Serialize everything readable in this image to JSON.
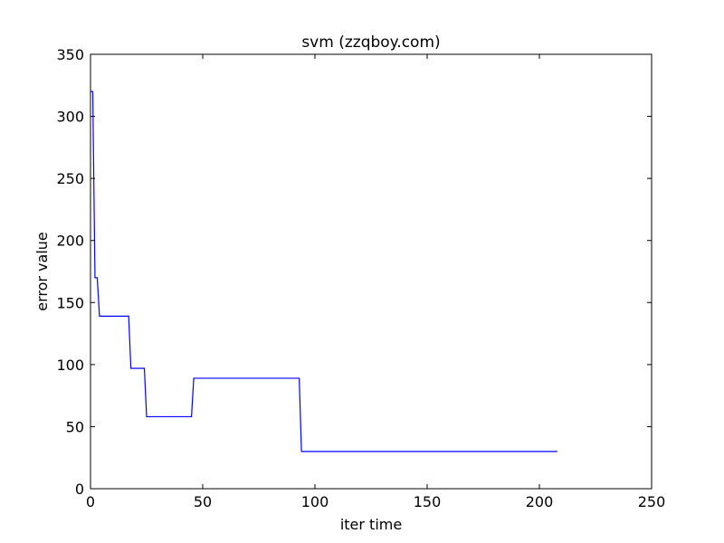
{
  "chart_data": {
    "type": "line",
    "title": "svm (zzqboy.com)",
    "xlabel": "iter time",
    "ylabel": "error value",
    "xlim": [
      0,
      250
    ],
    "ylim": [
      0,
      350
    ],
    "xticks": [
      0,
      50,
      100,
      150,
      200,
      250
    ],
    "yticks": [
      0,
      50,
      100,
      150,
      200,
      250,
      300,
      350
    ],
    "grid": false,
    "line_color": "#0000ff",
    "series": [
      {
        "x": [
          0,
          1,
          2,
          3,
          4,
          17,
          18,
          24,
          25,
          45,
          46,
          93,
          94,
          208
        ],
        "y": [
          320,
          320,
          170,
          170,
          139,
          139,
          97,
          97,
          58,
          58,
          89,
          89,
          30,
          30
        ]
      }
    ]
  }
}
